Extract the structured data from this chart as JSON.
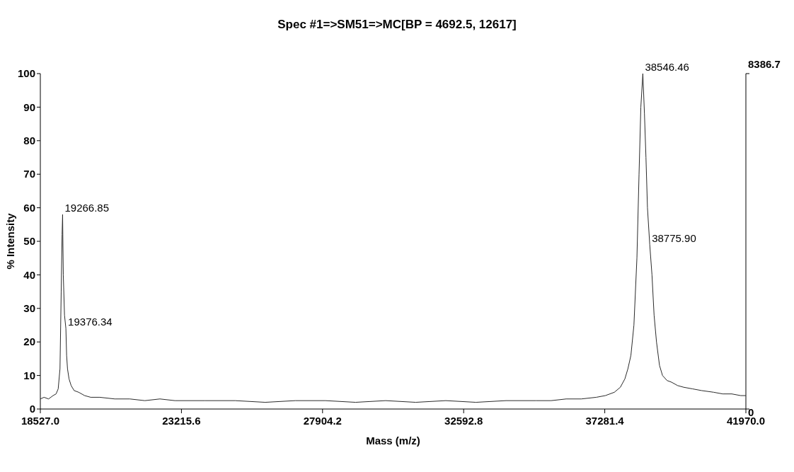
{
  "chart_data": {
    "type": "line",
    "title": "Spec #1=>SM51=>MC[BP = 4692.5, 12617]",
    "xlabel": "Mass (m/z)",
    "ylabel": "% Intensity",
    "series": [
      {
        "color": "#2a2a2a",
        "x": [
          18527,
          18650,
          18800,
          18950,
          19050,
          19120,
          19180,
          19220,
          19250,
          19266.85,
          19290,
          19330,
          19376.34,
          19400,
          19430,
          19480,
          19550,
          19650,
          19800,
          20000,
          20200,
          20500,
          21000,
          21500,
          22000,
          22500,
          23000,
          24000,
          25000,
          26000,
          27000,
          28000,
          29000,
          30000,
          31000,
          32000,
          33000,
          34000,
          35000,
          35500,
          36000,
          36500,
          37000,
          37300,
          37600,
          37800,
          37950,
          38050,
          38150,
          38250,
          38350,
          38420,
          38480,
          38546.46,
          38600,
          38650,
          38700,
          38775.9,
          38850,
          38920,
          39000,
          39100,
          39200,
          39350,
          39500,
          39700,
          39900,
          40200,
          40500,
          40900,
          41200,
          41500,
          41800,
          41970
        ],
        "values": [
          3,
          3.5,
          3,
          4,
          4.5,
          6,
          12,
          35,
          52,
          58,
          40,
          28,
          24,
          16,
          12,
          9,
          7,
          5.5,
          5,
          4,
          3.5,
          3.5,
          3,
          3,
          2.5,
          3,
          2.5,
          2.5,
          2.5,
          2,
          2.5,
          2.5,
          2,
          2.5,
          2,
          2.5,
          2,
          2.5,
          2.5,
          2.5,
          3,
          3,
          3.5,
          4,
          5,
          6.5,
          9,
          12,
          16,
          25,
          45,
          70,
          90,
          100,
          88,
          75,
          60,
          49,
          40,
          28,
          20,
          13,
          10,
          8.5,
          8,
          7,
          6.5,
          6,
          5.5,
          5,
          4.5,
          4.5,
          4,
          4
        ]
      }
    ],
    "xlim": [
      18527,
      41970
    ],
    "xticks": [
      {
        "value": 18527,
        "label": "18527.0"
      },
      23215.6,
      27904.2,
      32592.8,
      37281.4,
      {
        "value": 41970,
        "label": "41970.0"
      }
    ],
    "ylim": [
      0,
      100
    ],
    "yticks": [
      0,
      10,
      20,
      30,
      40,
      50,
      60,
      70,
      80,
      90,
      100
    ],
    "y2lim": [
      0,
      8386.7
    ],
    "y2ticks": [
      0,
      8386.7
    ],
    "annotations": [
      {
        "text": "19266.85",
        "x": 19266.85,
        "y": 58
      },
      {
        "text": "19376.34",
        "x": 19376.34,
        "y": 24
      },
      {
        "text": "38546.46",
        "x": 38546.46,
        "y": 100
      },
      {
        "text": "38775.90",
        "x": 38775.9,
        "y": 49
      }
    ],
    "grid": false
  }
}
